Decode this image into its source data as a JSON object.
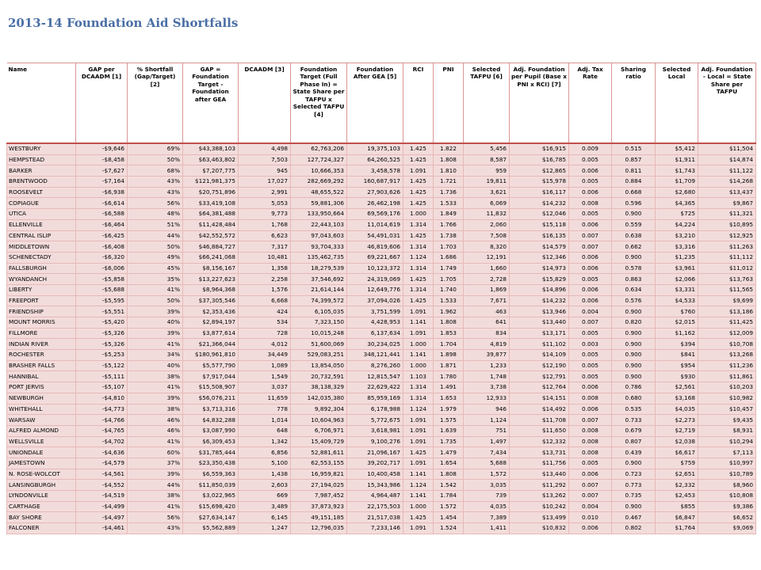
{
  "header": {
    "title": "2013-14 Foundation Aid Shortfalls"
  },
  "table": {
    "columns": [
      "Name",
      "GAP per DCAADM [1]",
      "% Shortfall (Gap/Target) [2]",
      "GAP = Foundation Target - Foundation after GEA",
      "DCAADM [3]",
      "Foundation Target (Full Phase In) = State Share per TAFPU x Selected TAFPU [4]",
      "Foundation After GEA [5]",
      "RCI",
      "PNI",
      "Selected TAFPU [6]",
      "Adj. Foundation per Pupil (Base x PNI x RCI) [7]",
      "Adj. Tax Rate",
      "Sharing ratio",
      "Selected Local",
      "Adj. Foundation - Local = State Share per TAFPU"
    ],
    "rows": [
      [
        "WESTBURY",
        "-$9,646",
        "69%",
        "$43,388,103",
        "4,498",
        "62,763,206",
        "19,375,103",
        "1.425",
        "1.822",
        "5,456",
        "$16,915",
        "0.009",
        "0.515",
        "$5,412",
        "$11,504"
      ],
      [
        "HEMPSTEAD",
        "-$8,458",
        "50%",
        "$63,463,802",
        "7,503",
        "127,724,327",
        "64,260,525",
        "1.425",
        "1.808",
        "8,587",
        "$16,785",
        "0.005",
        "0.857",
        "$1,911",
        "$14,874"
      ],
      [
        "BARKER",
        "-$7,627",
        "68%",
        "$7,207,775",
        "945",
        "10,666,353",
        "3,458,578",
        "1.091",
        "1.810",
        "959",
        "$12,865",
        "0.006",
        "0.811",
        "$1,743",
        "$11,122"
      ],
      [
        "BRENTWOOD",
        "-$7,164",
        "43%",
        "$121,981,375",
        "17,027",
        "282,669,292",
        "160,687,917",
        "1.425",
        "1.721",
        "19,811",
        "$15,978",
        "0.005",
        "0.884",
        "$1,709",
        "$14,268"
      ],
      [
        "ROOSEVELT",
        "-$6,938",
        "43%",
        "$20,751,896",
        "2,991",
        "48,655,522",
        "27,903,626",
        "1.425",
        "1.736",
        "3,621",
        "$16,117",
        "0.006",
        "0.668",
        "$2,680",
        "$13,437"
      ],
      [
        "COPIAGUE",
        "-$6,614",
        "56%",
        "$33,419,108",
        "5,053",
        "59,881,306",
        "26,462,198",
        "1.425",
        "1.533",
        "6,069",
        "$14,232",
        "0.008",
        "0.596",
        "$4,365",
        "$9,867"
      ],
      [
        "UTICA",
        "-$6,588",
        "48%",
        "$64,381,488",
        "9,773",
        "133,950,664",
        "69,569,176",
        "1.000",
        "1.849",
        "11,832",
        "$12,046",
        "0.005",
        "0.900",
        "$725",
        "$11,321"
      ],
      [
        "ELLENVILLE",
        "-$6,464",
        "51%",
        "$11,428,484",
        "1,768",
        "22,443,103",
        "11,014,619",
        "1.314",
        "1.766",
        "2,060",
        "$15,118",
        "0.006",
        "0.559",
        "$4,224",
        "$10,895"
      ],
      [
        "CENTRAL ISLIP",
        "-$6,425",
        "44%",
        "$42,552,572",
        "6,623",
        "97,043,603",
        "54,491,031",
        "1.425",
        "1.738",
        "7,508",
        "$16,135",
        "0.007",
        "0.638",
        "$3,210",
        "$12,925"
      ],
      [
        "MIDDLETOWN",
        "-$6,408",
        "50%",
        "$46,884,727",
        "7,317",
        "93,704,333",
        "46,819,606",
        "1.314",
        "1.703",
        "8,320",
        "$14,579",
        "0.007",
        "0.662",
        "$3,316",
        "$11,263"
      ],
      [
        "SCHENECTADY",
        "-$6,320",
        "49%",
        "$66,241,068",
        "10,481",
        "135,462,735",
        "69,221,667",
        "1.124",
        "1.686",
        "12,191",
        "$12,346",
        "0.006",
        "0.900",
        "$1,235",
        "$11,112"
      ],
      [
        "FALLSBURGH",
        "-$6,006",
        "45%",
        "$8,156,167",
        "1,358",
        "18,279,539",
        "10,123,372",
        "1.314",
        "1.749",
        "1,660",
        "$14,973",
        "0.006",
        "0.578",
        "$3,961",
        "$11,012"
      ],
      [
        "WYANDANCH",
        "-$5,858",
        "35%",
        "$13,227,623",
        "2,258",
        "37,546,692",
        "24,319,069",
        "1.425",
        "1.705",
        "2,728",
        "$15,829",
        "0.005",
        "0.863",
        "$2,066",
        "$13,763"
      ],
      [
        "LIBERTY",
        "-$5,688",
        "41%",
        "$8,964,368",
        "1,576",
        "21,614,144",
        "12,649,776",
        "1.314",
        "1.740",
        "1,869",
        "$14,896",
        "0.006",
        "0.634",
        "$3,331",
        "$11,565"
      ],
      [
        "FREEPORT",
        "-$5,595",
        "50%",
        "$37,305,546",
        "6,668",
        "74,399,572",
        "37,094,026",
        "1.425",
        "1.533",
        "7,671",
        "$14,232",
        "0.006",
        "0.576",
        "$4,533",
        "$9,699"
      ],
      [
        "FRIENDSHIP",
        "-$5,551",
        "39%",
        "$2,353,436",
        "424",
        "6,105,035",
        "3,751,599",
        "1.091",
        "1.962",
        "463",
        "$13,946",
        "0.004",
        "0.900",
        "$760",
        "$13,186"
      ],
      [
        "MOUNT MORRIS",
        "-$5,420",
        "40%",
        "$2,894,197",
        "534",
        "7,323,150",
        "4,428,953",
        "1.141",
        "1.808",
        "641",
        "$13,440",
        "0.007",
        "0.820",
        "$2,015",
        "$11,425"
      ],
      [
        "FILLMORE",
        "-$5,326",
        "39%",
        "$3,877,614",
        "728",
        "10,015,248",
        "6,137,634",
        "1.091",
        "1.853",
        "834",
        "$13,171",
        "0.005",
        "0.900",
        "$1,162",
        "$12,009"
      ],
      [
        "INDIAN RIVER",
        "-$5,326",
        "41%",
        "$21,366,044",
        "4,012",
        "51,600,069",
        "30,234,025",
        "1.000",
        "1.704",
        "4,819",
        "$11,102",
        "0.003",
        "0.900",
        "$394",
        "$10,708"
      ],
      [
        "ROCHESTER",
        "-$5,253",
        "34%",
        "$180,961,810",
        "34,449",
        "529,083,251",
        "348,121,441",
        "1.141",
        "1.898",
        "39,877",
        "$14,109",
        "0.005",
        "0.900",
        "$841",
        "$13,268"
      ],
      [
        "BRASHER FALLS",
        "-$5,122",
        "40%",
        "$5,577,790",
        "1,089",
        "13,854,050",
        "8,276,260",
        "1.000",
        "1.871",
        "1,233",
        "$12,190",
        "0.005",
        "0.900",
        "$954",
        "$11,236"
      ],
      [
        "HANNIBAL",
        "-$5,111",
        "38%",
        "$7,917,044",
        "1,549",
        "20,732,591",
        "12,815,547",
        "1.103",
        "1.780",
        "1,748",
        "$12,791",
        "0.005",
        "0.900",
        "$930",
        "$11,861"
      ],
      [
        "PORT JERVIS",
        "-$5,107",
        "41%",
        "$15,508,907",
        "3,037",
        "38,138,329",
        "22,629,422",
        "1.314",
        "1.491",
        "3,738",
        "$12,764",
        "0.006",
        "0.786",
        "$2,561",
        "$10,203"
      ],
      [
        "NEWBURGH",
        "-$4,810",
        "39%",
        "$56,076,211",
        "11,659",
        "142,035,380",
        "85,959,169",
        "1.314",
        "1.653",
        "12,933",
        "$14,151",
        "0.008",
        "0.680",
        "$3,168",
        "$10,982"
      ],
      [
        "WHITEHALL",
        "-$4,773",
        "38%",
        "$3,713,316",
        "778",
        "9,892,304",
        "6,178,988",
        "1.124",
        "1.979",
        "946",
        "$14,492",
        "0.006",
        "0.535",
        "$4,035",
        "$10,457"
      ],
      [
        "WARSAW",
        "-$4,766",
        "46%",
        "$4,832,288",
        "1,014",
        "10,604,963",
        "5,772,675",
        "1.091",
        "1.575",
        "1,124",
        "$11,708",
        "0.007",
        "0.733",
        "$2,273",
        "$9,435"
      ],
      [
        "ALFRED ALMOND",
        "-$4,765",
        "46%",
        "$3,087,990",
        "648",
        "6,706,971",
        "3,618,981",
        "1.091",
        "1.639",
        "751",
        "$11,650",
        "0.008",
        "0.679",
        "$2,719",
        "$8,931"
      ],
      [
        "WELLSVILLE",
        "-$4,702",
        "41%",
        "$6,309,453",
        "1,342",
        "15,409,729",
        "9,100,276",
        "1.091",
        "1.735",
        "1,497",
        "$12,332",
        "0.008",
        "0.807",
        "$2,038",
        "$10,294"
      ],
      [
        "UNIONDALE",
        "-$4,636",
        "60%",
        "$31,785,444",
        "6,856",
        "52,881,611",
        "21,096,167",
        "1.425",
        "1.479",
        "7,434",
        "$13,731",
        "0.008",
        "0.439",
        "$6,617",
        "$7,113"
      ],
      [
        "JAMESTOWN",
        "-$4,579",
        "37%",
        "$23,350,438",
        "5,100",
        "62,553,155",
        "39,202,717",
        "1.091",
        "1.654",
        "5,688",
        "$11,756",
        "0.005",
        "0.900",
        "$759",
        "$10,997"
      ],
      [
        "N. ROSE-WOLCOT",
        "-$4,561",
        "39%",
        "$6,559,363",
        "1,438",
        "16,959,821",
        "10,400,458",
        "1.141",
        "1.808",
        "1,572",
        "$13,440",
        "0.006",
        "0.723",
        "$2,651",
        "$10,789"
      ],
      [
        "LANSINGBURGH",
        "-$4,552",
        "44%",
        "$11,850,039",
        "2,603",
        "27,194,025",
        "15,343,986",
        "1.124",
        "1.542",
        "3,035",
        "$11,292",
        "0.007",
        "0.773",
        "$2,332",
        "$8,960"
      ],
      [
        "LYNDONVILLE",
        "-$4,519",
        "38%",
        "$3,022,965",
        "669",
        "7,987,452",
        "4,964,487",
        "1.141",
        "1.784",
        "739",
        "$13,262",
        "0.007",
        "0.735",
        "$2,453",
        "$10,808"
      ],
      [
        "CARTHAGE",
        "-$4,499",
        "41%",
        "$15,698,420",
        "3,489",
        "37,873,923",
        "22,175,503",
        "1.000",
        "1.572",
        "4,035",
        "$10,242",
        "0.004",
        "0.900",
        "$855",
        "$9,386"
      ],
      [
        "BAY SHORE",
        "-$4,497",
        "56%",
        "$27,634,147",
        "6,145",
        "49,151,185",
        "21,517,038",
        "1.425",
        "1.454",
        "7,389",
        "$13,499",
        "0.010",
        "0.467",
        "$6,847",
        "$6,652"
      ],
      [
        "FALCONER",
        "-$4,461",
        "43%",
        "$5,562,889",
        "1,247",
        "12,796,035",
        "7,233,146",
        "1.091",
        "1.524",
        "1,411",
        "$10,832",
        "0.006",
        "0.802",
        "$1,764",
        "$9,069"
      ]
    ]
  }
}
